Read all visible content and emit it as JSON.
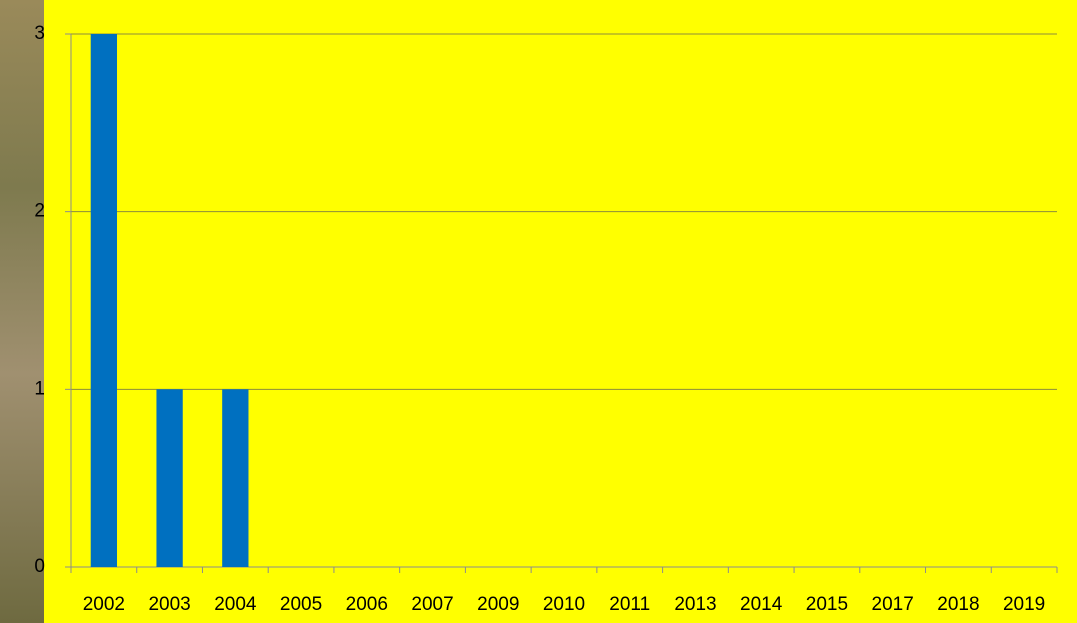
{
  "chart_data": {
    "type": "bar",
    "categories": [
      "2002",
      "2003",
      "2004",
      "2005",
      "2006",
      "2007",
      "2009",
      "2010",
      "2011",
      "2013",
      "2014",
      "2015",
      "2017",
      "2018",
      "2019"
    ],
    "values": [
      3,
      1,
      1,
      0,
      0,
      0,
      0,
      0,
      0,
      0,
      0,
      0,
      0,
      0,
      0
    ],
    "color": "#0070c0",
    "ylim": [
      0,
      3
    ],
    "yticks": [
      0,
      1,
      2,
      3
    ],
    "grid": true
  }
}
